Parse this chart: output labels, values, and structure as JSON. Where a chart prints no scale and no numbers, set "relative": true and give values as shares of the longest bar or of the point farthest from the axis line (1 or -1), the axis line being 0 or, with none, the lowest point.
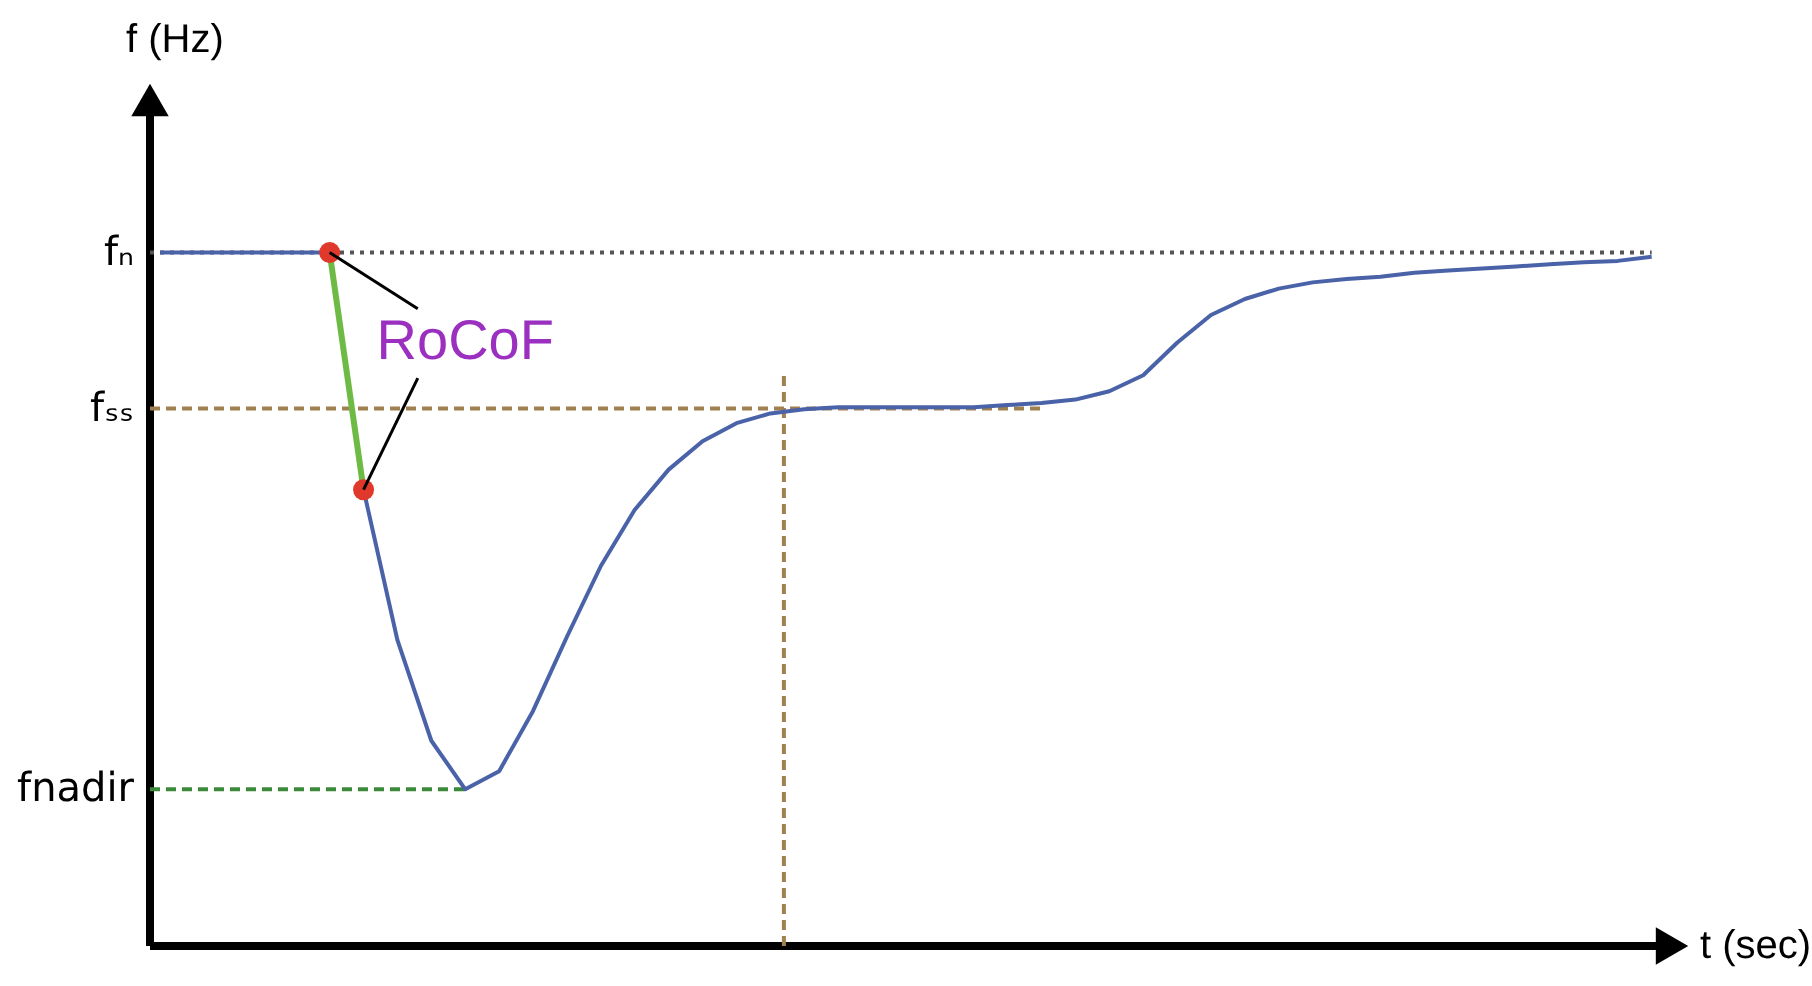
{
  "chart_data": {
    "type": "line",
    "relative": true,
    "xlabel": "t (sec)",
    "ylabel": "f (Hz)",
    "categories": [
      null,
      null,
      null,
      null,
      null,
      null,
      null,
      null,
      null,
      null,
      null,
      null,
      null,
      null,
      null,
      null,
      null,
      null,
      null,
      null,
      null,
      null,
      null,
      null,
      null,
      null,
      null,
      null,
      null,
      null,
      null,
      null,
      null,
      null,
      null,
      null,
      null,
      null,
      null,
      null,
      null,
      null,
      null,
      null,
      null
    ],
    "series": [
      {
        "color": "#4a62a8",
        "marker": "none",
        "values": [
          1.0,
          1.0,
          1.0,
          1.0,
          1.0,
          1.0,
          0.658,
          0.441,
          0.296,
          0.226,
          0.252,
          0.339,
          0.446,
          0.548,
          0.629,
          0.687,
          0.728,
          0.754,
          0.768,
          0.774,
          0.777,
          0.777,
          0.777,
          0.777,
          0.777,
          0.78,
          0.783,
          0.788,
          0.8,
          0.823,
          0.87,
          0.91,
          0.933,
          0.948,
          0.957,
          0.962,
          0.965,
          0.971,
          0.974,
          0.977,
          0.98,
          0.983,
          0.986,
          0.988,
          0.994
        ]
      },
      {
        "color": "#6dbb45",
        "marker": "circle",
        "colors": [
          null,
          null,
          null,
          null,
          null,
          "#e0392b",
          "#e0392b",
          null,
          null,
          null,
          null,
          null,
          null,
          null,
          null,
          null,
          null,
          null,
          null,
          null,
          null,
          null,
          null,
          null,
          null,
          null,
          null,
          null,
          null,
          null,
          null,
          null,
          null,
          null,
          null,
          null,
          null,
          null,
          null,
          null,
          null,
          null,
          null,
          null,
          null
        ],
        "values": [
          null,
          null,
          null,
          null,
          null,
          1.0,
          0.658,
          null,
          null,
          null,
          null,
          null,
          null,
          null,
          null,
          null,
          null,
          null,
          null,
          null,
          null,
          null,
          null,
          null,
          null,
          null,
          null,
          null,
          null,
          null,
          null,
          null,
          null,
          null,
          null,
          null,
          null,
          null,
          null,
          null,
          null,
          null,
          null,
          null,
          null
        ]
      }
    ],
    "ref_lines": [
      {
        "axis": "y",
        "value": 1.0,
        "label": "fₙ",
        "color": "#555555",
        "line_style": "dotted"
      },
      {
        "axis": "y",
        "value": 0.775,
        "label": "fₛₛ",
        "color": "#a08050",
        "line_style": "dashed"
      },
      {
        "axis": "y",
        "value": 0.226,
        "label": "fnadir",
        "color": "#3a8a3a",
        "line_style": "dashed"
      }
    ],
    "annotations": [
      "RoCoF"
    ]
  }
}
